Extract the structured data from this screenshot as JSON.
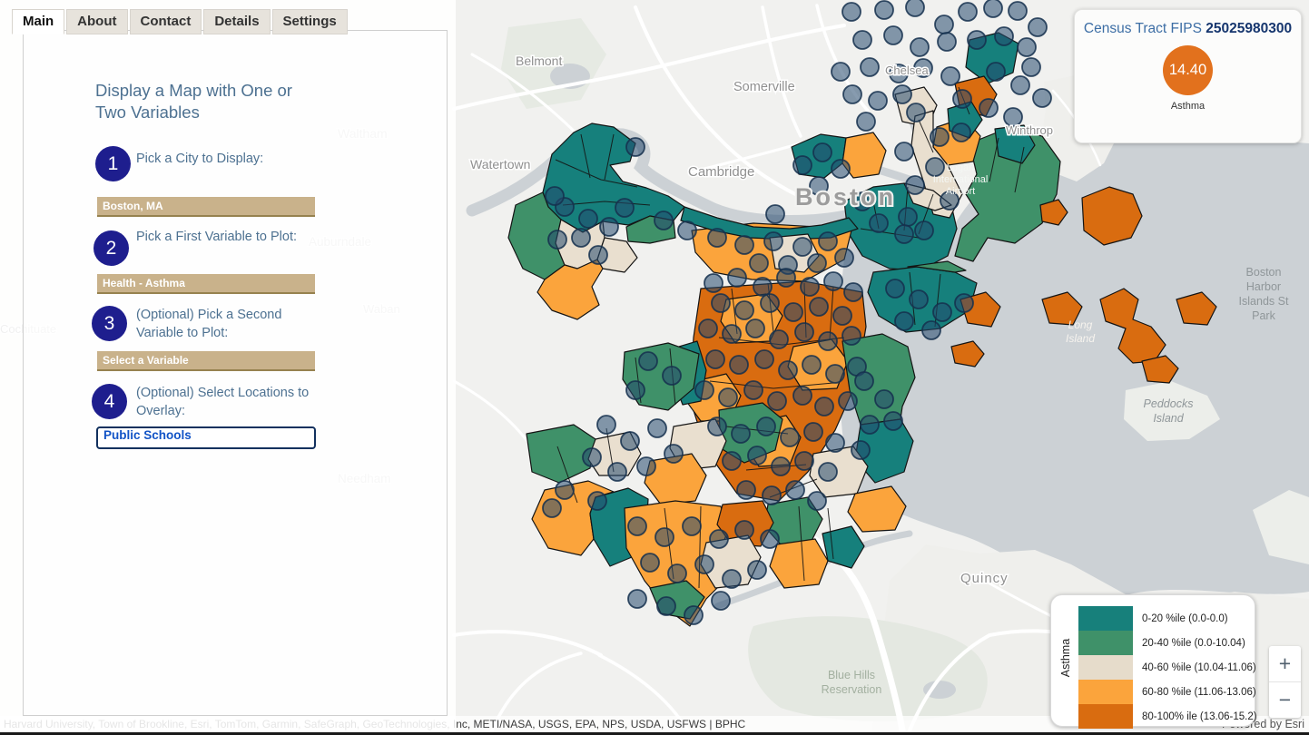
{
  "tabs": [
    {
      "label": "Main"
    },
    {
      "label": "About"
    },
    {
      "label": "Contact"
    },
    {
      "label": "Details"
    },
    {
      "label": "Settings"
    }
  ],
  "sidebar": {
    "title": "Display a Map with One or Two Variables",
    "steps": [
      {
        "number": "1",
        "label": "Pick a City to Display:",
        "value": "Boston, MA"
      },
      {
        "number": "2",
        "label": "Pick a First Variable to Plot:",
        "value": "Health - Asthma"
      },
      {
        "number": "3",
        "label": "(Optional) Pick a Second Variable to Plot:",
        "value": "Select a Variable"
      },
      {
        "number": "4",
        "label": "(Optional) Select Locations to Overlay:",
        "value": "Public Schools"
      }
    ]
  },
  "info_box": {
    "title_prefix": "Census Tract FIPS",
    "fips": "25025980300",
    "value": "14.40",
    "variable": "Asthma",
    "circle_color": "#e2711d"
  },
  "legend": {
    "axis_label": "Asthma",
    "items": [
      {
        "label": "0-20 %ile (0.0-0.0)",
        "color": "#17807b"
      },
      {
        "label": "20-40 %ile (0.0-10.04)",
        "color": "#3f9169"
      },
      {
        "label": "40-60 %ile (10.04-11.06)",
        "color": "#e6dccb"
      },
      {
        "label": "60-80 %ile (11.06-13.06)",
        "color": "#fba43c"
      },
      {
        "label": "80-100% ile (13.06-15.2)",
        "color": "#d96c10"
      }
    ]
  },
  "map": {
    "labels": [
      {
        "text": "Belmont"
      },
      {
        "text": "Somerville"
      },
      {
        "text": "Watertown"
      },
      {
        "text": "Cambridge"
      },
      {
        "text": "Boston"
      },
      {
        "text": "Chelsea"
      },
      {
        "text": "Winthrop"
      },
      {
        "text": "Logan"
      },
      {
        "text": "International"
      },
      {
        "text": "Airport"
      },
      {
        "text": "Long"
      },
      {
        "text": "Island"
      },
      {
        "text": "Peddocks"
      },
      {
        "text": "Island"
      },
      {
        "text": "Boston"
      },
      {
        "text": "Harbor"
      },
      {
        "text": "Islands St"
      },
      {
        "text": "Park"
      },
      {
        "text": "Quincy"
      },
      {
        "text": "Blue Hills"
      },
      {
        "text": "Reservation"
      },
      {
        "text": "Waltham"
      },
      {
        "text": "Auburndale"
      },
      {
        "text": "Waban"
      },
      {
        "text": "Cochituate"
      },
      {
        "text": "Needham"
      }
    ],
    "controls": {
      "zoom_in": "+",
      "zoom_out": "−"
    },
    "attribution": "Harvard University, Town of Brookline, Esri, TomTom, Garmin, SafeGraph, GeoTechnologies, Inc, METI/NASA, USGS, EPA, NPS, USDA, USFWS | BPHC",
    "powered_by": "Powered by Esri"
  }
}
